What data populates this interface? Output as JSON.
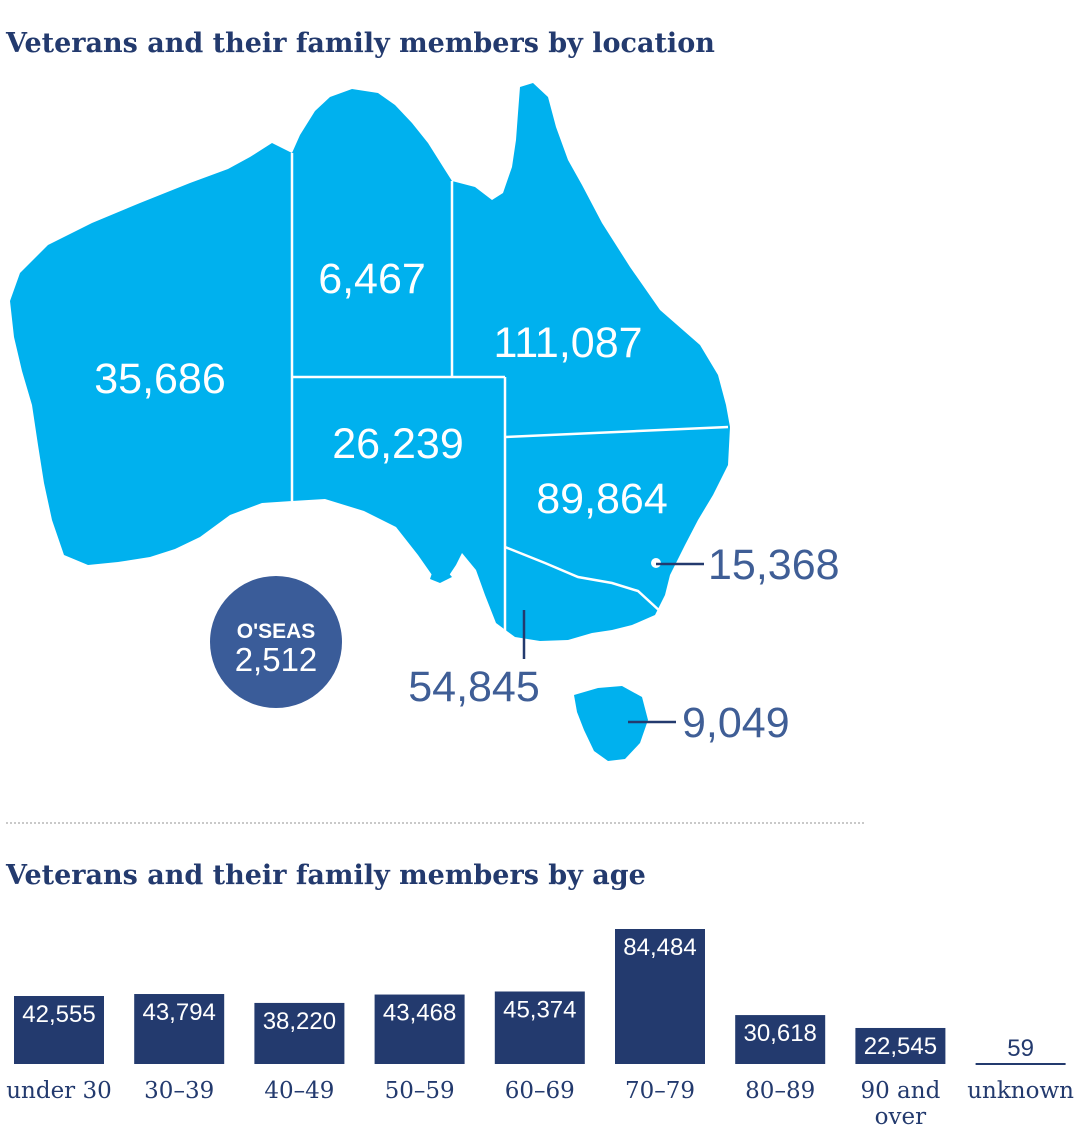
{
  "map_title": "Veterans and their family members by location",
  "age_title": "Veterans and their family members by age",
  "colors": {
    "map_fill": "#00b1ee",
    "navy": "#233a6e",
    "callout": "#3f5e96",
    "label_white": "#ffffff"
  },
  "regions": {
    "wa": "35,686",
    "nt": "6,467",
    "qld": "111,087",
    "sa": "26,239",
    "nsw": "89,864",
    "act": "15,368",
    "vic": "54,845",
    "tas": "9,049"
  },
  "overseas": {
    "label": "O'SEAS",
    "value": "2,512"
  },
  "chart_data": {
    "type": "bar",
    "title": "Veterans and their family members by age",
    "categories": [
      "under 30",
      "30–39",
      "40–49",
      "50–59",
      "60–69",
      "70–79",
      "80–89",
      "90 and over",
      "unknown"
    ],
    "values": [
      42555,
      43794,
      38220,
      43468,
      45374,
      84484,
      30618,
      22545,
      59
    ],
    "value_labels": [
      "42,555",
      "43,794",
      "38,220",
      "43,468",
      "45,374",
      "84,484",
      "30,618",
      "22,545",
      "59"
    ],
    "xlabel": "",
    "ylabel": "",
    "ylim": [
      0,
      84484
    ],
    "grid": false
  }
}
